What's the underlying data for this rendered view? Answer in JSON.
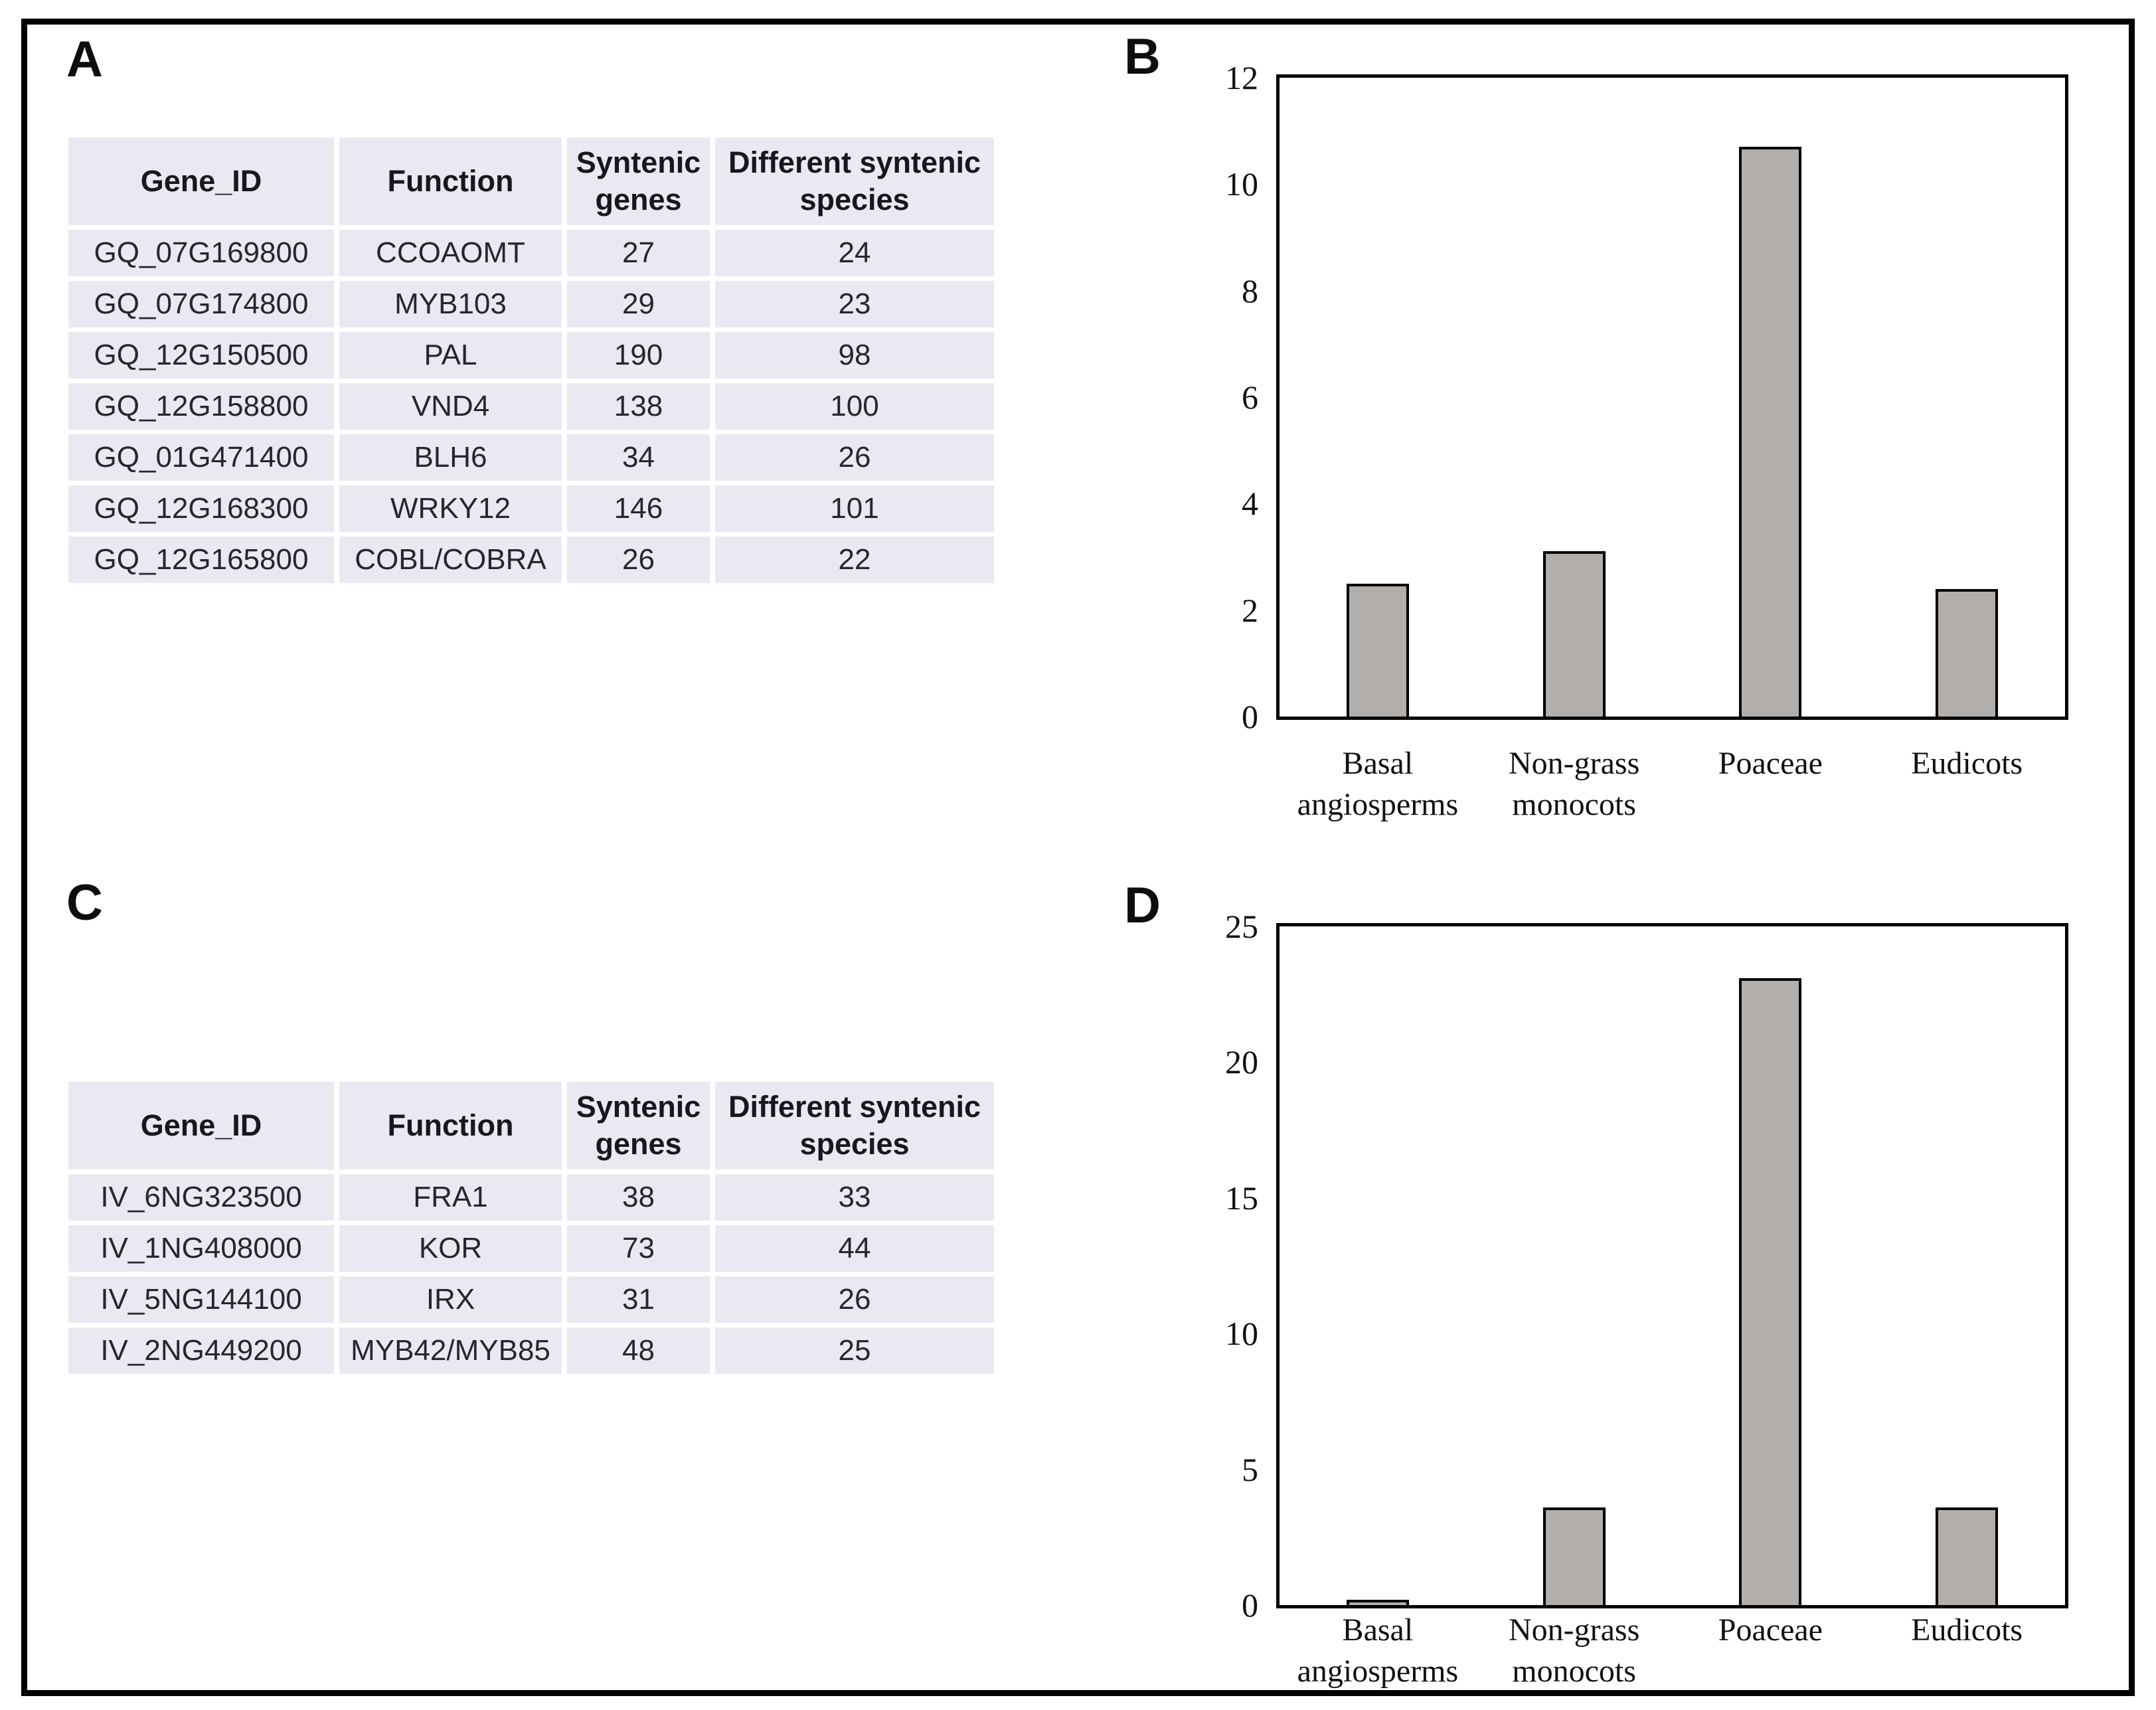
{
  "figure": {
    "panels": {
      "A": {
        "label": "A"
      },
      "B": {
        "label": "B"
      },
      "C": {
        "label": "C"
      },
      "D": {
        "label": "D"
      }
    },
    "tables": {
      "A": {
        "headers": [
          "Gene_ID",
          "Function",
          "Syntenic genes",
          "Different syntenic species"
        ],
        "rows": [
          [
            "GQ_07G169800",
            "CCOAOMT",
            "27",
            "24"
          ],
          [
            "GQ_07G174800",
            "MYB103",
            "29",
            "23"
          ],
          [
            "GQ_12G150500",
            "PAL",
            "190",
            "98"
          ],
          [
            "GQ_12G158800",
            "VND4",
            "138",
            "100"
          ],
          [
            "GQ_01G471400",
            "BLH6",
            "34",
            "26"
          ],
          [
            "GQ_12G168300",
            "WRKY12",
            "146",
            "101"
          ],
          [
            "GQ_12G165800",
            "COBL/COBRA",
            "26",
            "22"
          ]
        ]
      },
      "C": {
        "headers": [
          "Gene_ID",
          "Function",
          "Syntenic genes",
          "Different syntenic species"
        ],
        "rows": [
          [
            "IV_6NG323500",
            "FRA1",
            "38",
            "33"
          ],
          [
            "IV_1NG408000",
            "KOR",
            "73",
            "44"
          ],
          [
            "IV_5NG144100",
            "IRX",
            "31",
            "26"
          ],
          [
            "IV_2NG449200",
            "MYB42/MYB85",
            "48",
            "25"
          ]
        ]
      }
    }
  },
  "chart_data": [
    {
      "type": "bar",
      "panel": "B",
      "title": "",
      "categories": [
        "Basal angiosperms",
        "Non-grass monocots",
        "Poaceae",
        "Eudicots"
      ],
      "category_lines": [
        [
          "Basal",
          "angiosperms"
        ],
        [
          "Non-grass",
          "monocots"
        ],
        [
          "Poaceae"
        ],
        [
          "Eudicots"
        ]
      ],
      "values": [
        2.5,
        3.1,
        10.7,
        2.4
      ],
      "xlabel": "",
      "ylabel": "",
      "ylim": [
        0,
        12
      ],
      "yticks": [
        0,
        2,
        4,
        6,
        8,
        10,
        12
      ],
      "grid": false,
      "legend": "none",
      "bar_color": "#b1aeab"
    },
    {
      "type": "bar",
      "panel": "D",
      "title": "",
      "categories": [
        "Basal angiosperms",
        "Non-grass monocots",
        "Poaceae",
        "Eudicots"
      ],
      "category_lines": [
        [
          "Basal",
          "angiosperms"
        ],
        [
          "Non-grass",
          "monocots"
        ],
        [
          "Poaceae"
        ],
        [
          "Eudicots"
        ]
      ],
      "values": [
        0.2,
        3.6,
        23.1,
        3.6
      ],
      "xlabel": "",
      "ylabel": "",
      "ylim": [
        0,
        25
      ],
      "yticks": [
        0,
        5,
        10,
        15,
        20,
        25
      ],
      "grid": false,
      "legend": "none",
      "bar_color": "#b1aeab"
    }
  ],
  "colors": {
    "table_cell_bg": "#e9e9f2",
    "bar_fill": "#b1aeab",
    "frame_border": "#000000",
    "text": "#17171c"
  }
}
